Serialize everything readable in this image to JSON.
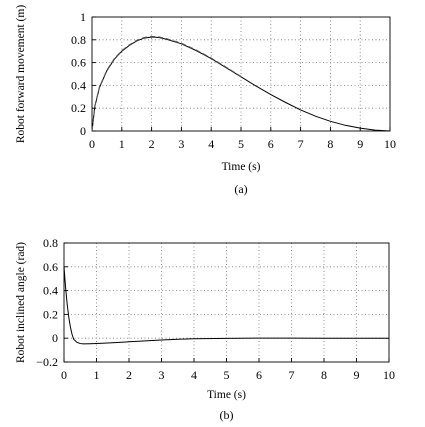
{
  "chart_data": [
    {
      "type": "line",
      "caption": "(a)",
      "xlabel": "Time (s)",
      "ylabel": "Robot forward movement (m)",
      "xlim": [
        0,
        10
      ],
      "ylim": [
        0,
        1
      ],
      "xticks": [
        "0",
        "1",
        "2",
        "3",
        "4",
        "5",
        "6",
        "7",
        "8",
        "9",
        "10"
      ],
      "yticks": [
        "0",
        "0.2",
        "0.4",
        "0.6",
        "0.8",
        "1"
      ],
      "grid": "dotted",
      "series": [
        {
          "style": "solid",
          "color": "#000000",
          "x": [
            0,
            0.1,
            0.25,
            0.5,
            0.75,
            1.0,
            1.25,
            1.5,
            1.75,
            2.0,
            2.25,
            2.5,
            3.0,
            3.5,
            4.0,
            4.5,
            5.0,
            5.5,
            6.0,
            6.5,
            7.0,
            7.5,
            8.0,
            8.5,
            9.0,
            9.5,
            10.0
          ],
          "y": [
            0,
            0.22,
            0.38,
            0.53,
            0.63,
            0.7,
            0.75,
            0.79,
            0.815,
            0.825,
            0.82,
            0.805,
            0.765,
            0.705,
            0.635,
            0.555,
            0.475,
            0.395,
            0.32,
            0.25,
            0.185,
            0.13,
            0.085,
            0.05,
            0.025,
            0.008,
            0.0
          ]
        },
        {
          "style": "dashed",
          "color": "#555555",
          "x": [
            0,
            0.1,
            0.25,
            0.5,
            0.75,
            1.0,
            1.25,
            1.5,
            1.75,
            2.0,
            2.25,
            2.5,
            3.0,
            3.5,
            4.0,
            4.5,
            5.0
          ],
          "y": [
            0,
            0.225,
            0.385,
            0.535,
            0.635,
            0.705,
            0.755,
            0.795,
            0.82,
            0.83,
            0.825,
            0.81,
            0.77,
            0.71,
            0.64,
            0.56,
            0.478
          ]
        }
      ]
    },
    {
      "type": "line",
      "caption": "(b)",
      "xlabel": "Time (s)",
      "ylabel": "Robot inclined angle (rad)",
      "xlim": [
        0,
        10
      ],
      "ylim": [
        -0.2,
        0.8
      ],
      "xticks": [
        "0",
        "1",
        "2",
        "3",
        "4",
        "5",
        "6",
        "7",
        "8",
        "9",
        "10"
      ],
      "yticks": [
        "−0.2",
        "0",
        "0.2",
        "0.4",
        "0.6",
        "0.8"
      ],
      "grid": "dotted",
      "series": [
        {
          "style": "solid",
          "color": "#000000",
          "x": [
            0,
            0.05,
            0.1,
            0.15,
            0.2,
            0.25,
            0.3,
            0.4,
            0.5,
            0.6,
            0.8,
            1.0,
            1.5,
            2.0,
            2.5,
            3.0,
            3.5,
            4.0,
            5.0,
            6.0,
            7.0,
            8.0,
            9.0,
            10.0
          ],
          "y": [
            0.6,
            0.42,
            0.28,
            0.17,
            0.09,
            0.03,
            -0.01,
            -0.035,
            -0.045,
            -0.048,
            -0.047,
            -0.045,
            -0.038,
            -0.03,
            -0.022,
            -0.015,
            -0.009,
            -0.005,
            -0.001,
            0.001,
            0.001,
            0.0,
            0.0,
            0.0
          ]
        }
      ]
    }
  ]
}
